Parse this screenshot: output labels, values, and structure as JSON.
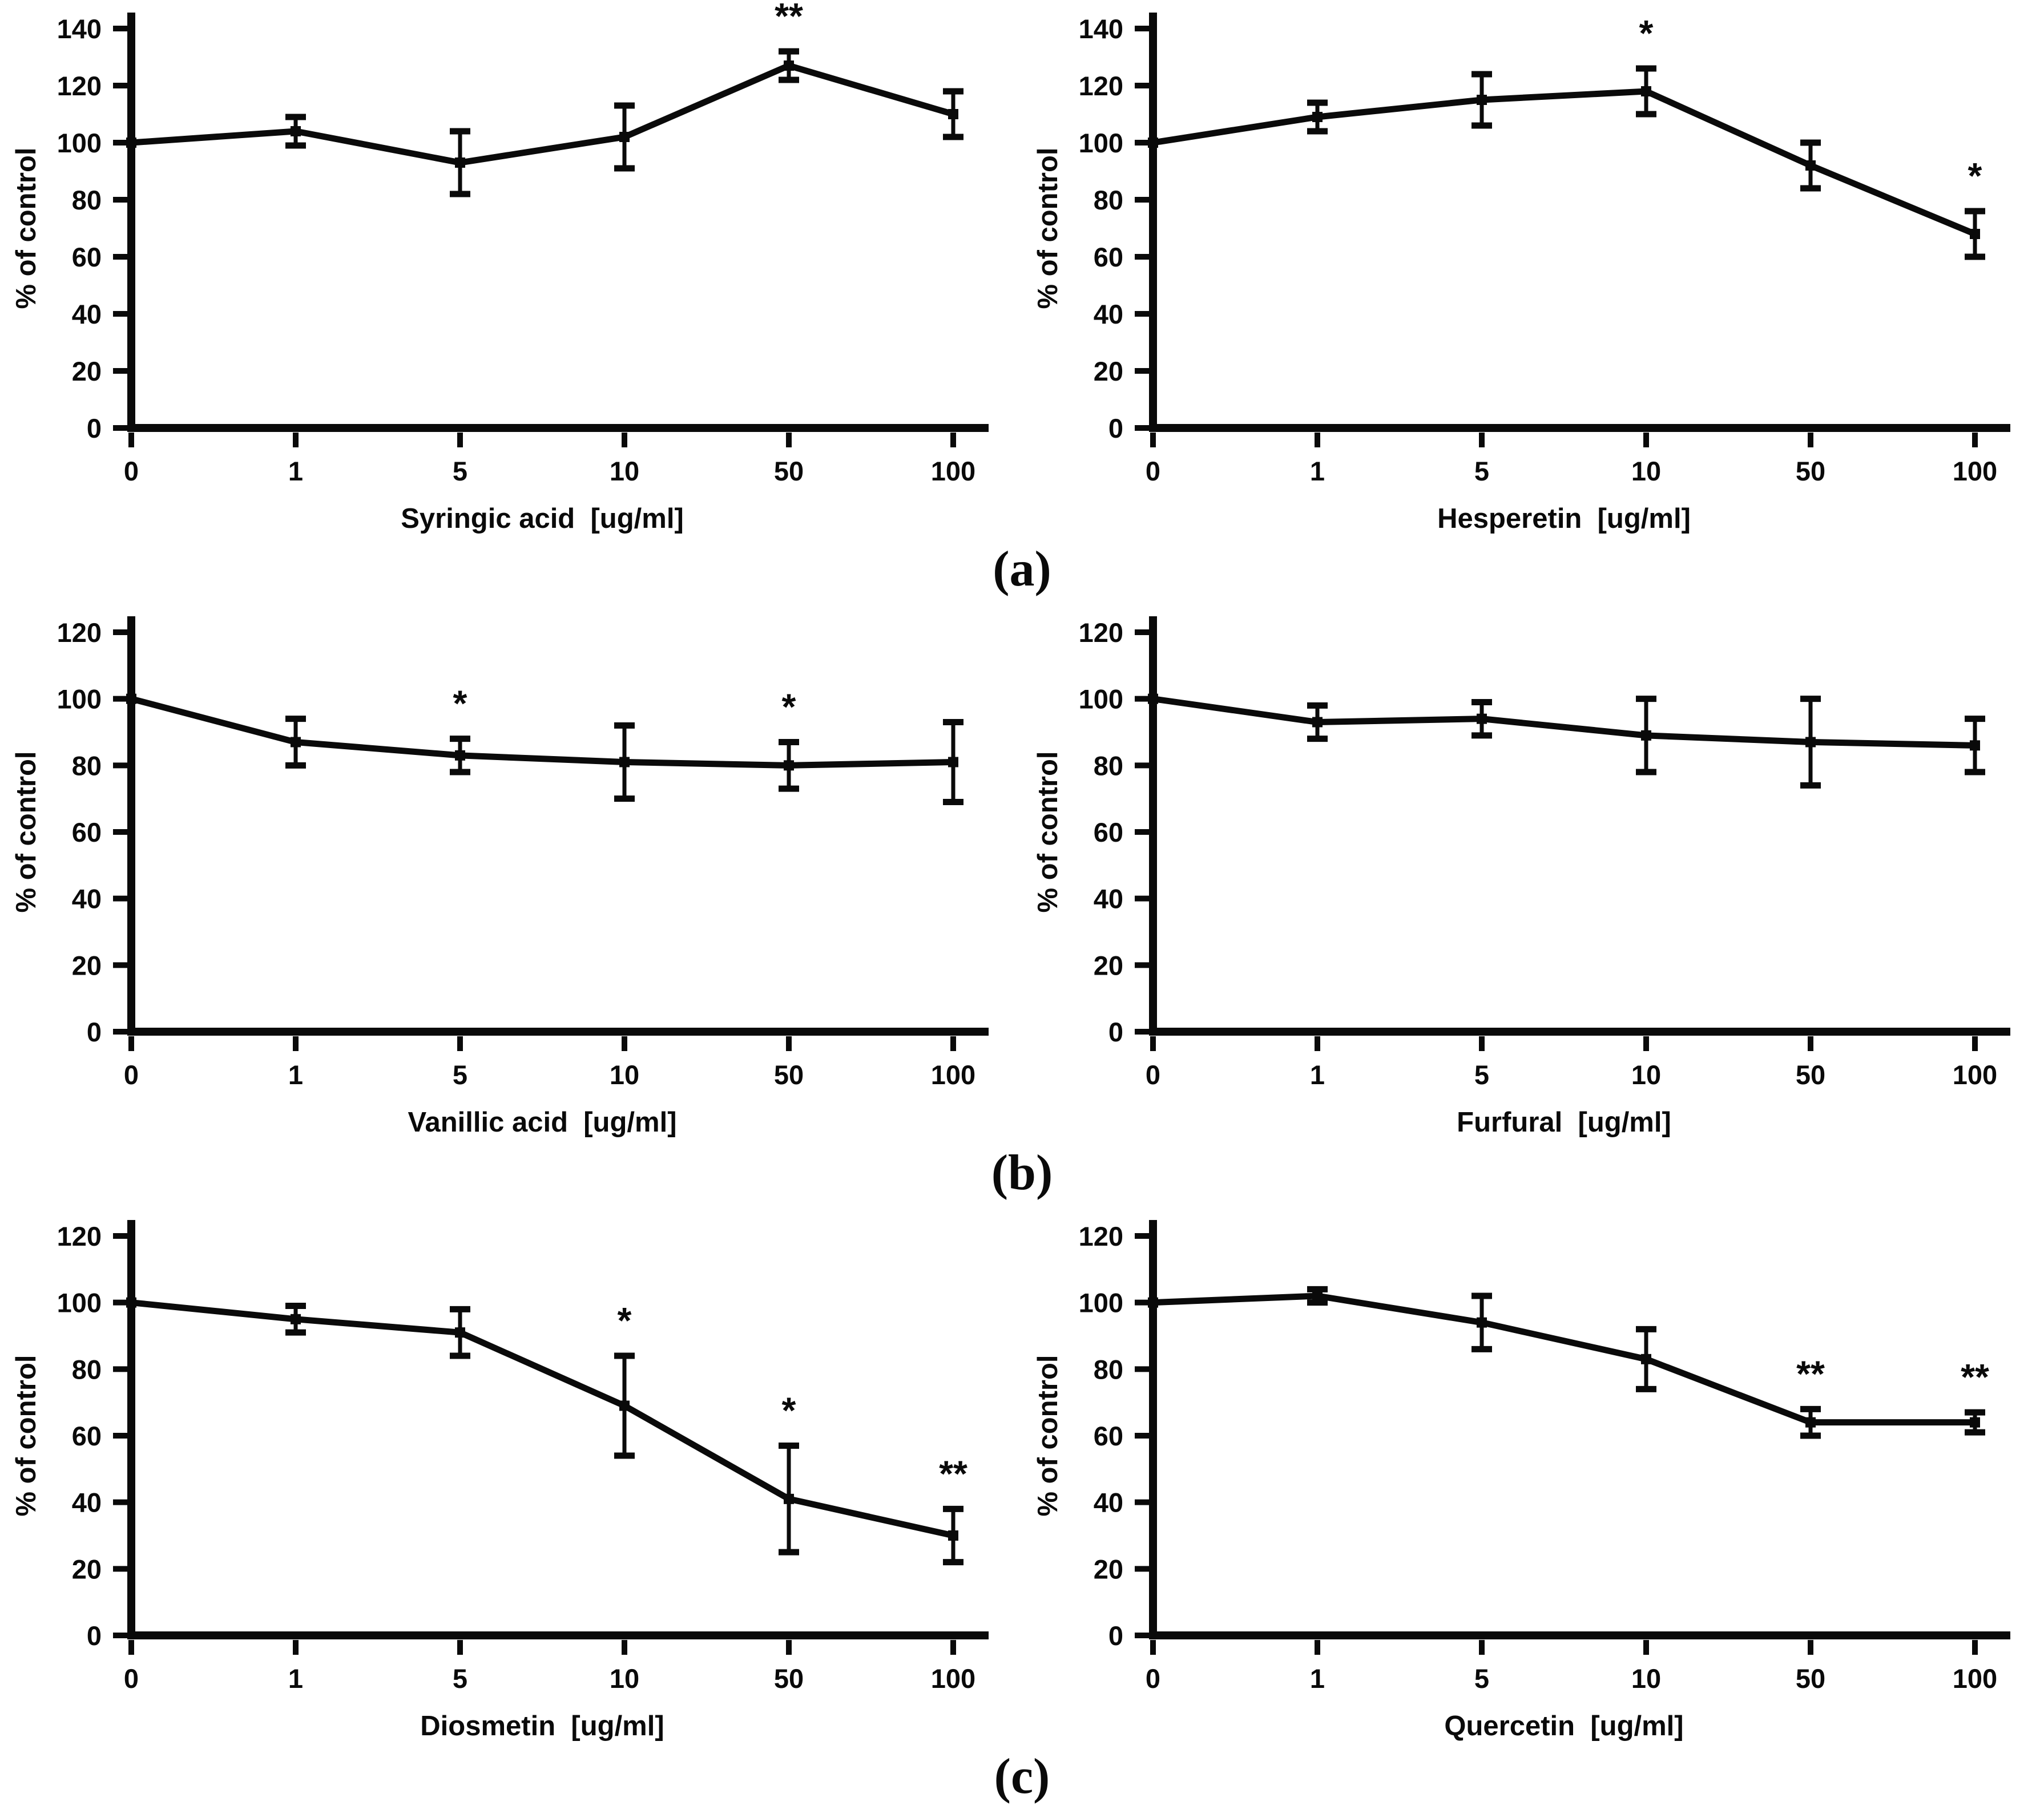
{
  "page": {
    "background": "#ffffff",
    "ink": "#0a0a0a"
  },
  "panel_labels": [
    {
      "id": "a",
      "label": "(a)"
    },
    {
      "id": "b",
      "label": "(b)"
    },
    {
      "id": "c",
      "label": "(c)"
    }
  ],
  "chart_data": [
    {
      "id": "syringic-acid",
      "panel": "a",
      "side": "left",
      "type": "line",
      "title": "",
      "xlabel": "Syringic acid  [ug/ml]",
      "ylabel": "% of control",
      "categories": [
        "0",
        "1",
        "5",
        "10",
        "50",
        "100"
      ],
      "values": [
        100,
        104,
        93,
        102,
        127,
        110
      ],
      "errors": [
        0,
        5,
        11,
        11,
        5,
        8
      ],
      "significance": [
        "",
        "",
        "",
        "",
        "**",
        ""
      ],
      "ylim": [
        0,
        140
      ],
      "yticks": [
        0,
        20,
        40,
        60,
        80,
        100,
        120,
        140
      ],
      "grid": false,
      "legend": "none",
      "line_color": "#0a0a0a"
    },
    {
      "id": "hesperetin",
      "panel": "a",
      "side": "right",
      "type": "line",
      "title": "",
      "xlabel": "Hesperetin  [ug/ml]",
      "ylabel": "% of control",
      "categories": [
        "0",
        "1",
        "5",
        "10",
        "50",
        "100"
      ],
      "values": [
        100,
        109,
        115,
        118,
        92,
        68
      ],
      "errors": [
        0,
        5,
        9,
        8,
        8,
        8
      ],
      "significance": [
        "",
        "",
        "",
        "*",
        "",
        "*"
      ],
      "ylim": [
        0,
        140
      ],
      "yticks": [
        0,
        20,
        40,
        60,
        80,
        100,
        120,
        140
      ],
      "grid": false,
      "legend": "none",
      "line_color": "#0a0a0a"
    },
    {
      "id": "vanillic-acid",
      "panel": "b",
      "side": "left",
      "type": "line",
      "title": "",
      "xlabel": "Vanillic acid  [ug/ml]",
      "ylabel": "% of control",
      "categories": [
        "0",
        "1",
        "5",
        "10",
        "50",
        "100"
      ],
      "values": [
        100,
        87,
        83,
        81,
        80,
        81
      ],
      "errors": [
        0,
        7,
        5,
        11,
        7,
        12
      ],
      "significance": [
        "",
        "",
        "*",
        "",
        "*",
        ""
      ],
      "ylim": [
        0,
        120
      ],
      "yticks": [
        0,
        20,
        40,
        60,
        80,
        100,
        120
      ],
      "grid": false,
      "legend": "none",
      "line_color": "#0a0a0a"
    },
    {
      "id": "furfural",
      "panel": "b",
      "side": "right",
      "type": "line",
      "title": "",
      "xlabel": "Furfural  [ug/ml]",
      "ylabel": "% of control",
      "categories": [
        "0",
        "1",
        "5",
        "10",
        "50",
        "100"
      ],
      "values": [
        100,
        93,
        94,
        89,
        87,
        86
      ],
      "errors": [
        0,
        5,
        5,
        11,
        13,
        8
      ],
      "significance": [
        "",
        "",
        "",
        "",
        "",
        ""
      ],
      "ylim": [
        0,
        120
      ],
      "yticks": [
        0,
        20,
        40,
        60,
        80,
        100,
        120
      ],
      "grid": false,
      "legend": "none",
      "line_color": "#0a0a0a"
    },
    {
      "id": "diosmetin",
      "panel": "c",
      "side": "left",
      "type": "line",
      "title": "",
      "xlabel": "Diosmetin  [ug/ml]",
      "ylabel": "% of control",
      "categories": [
        "0",
        "1",
        "5",
        "10",
        "50",
        "100"
      ],
      "values": [
        100,
        95,
        91,
        69,
        41,
        30
      ],
      "errors": [
        0,
        4,
        7,
        15,
        16,
        8
      ],
      "significance": [
        "",
        "",
        "",
        "*",
        "*",
        "**"
      ],
      "ylim": [
        0,
        120
      ],
      "yticks": [
        0,
        20,
        40,
        60,
        80,
        100,
        120
      ],
      "grid": false,
      "legend": "none",
      "line_color": "#0a0a0a"
    },
    {
      "id": "quercetin",
      "panel": "c",
      "side": "right",
      "type": "line",
      "title": "",
      "xlabel": "Quercetin  [ug/ml]",
      "ylabel": "% of control",
      "categories": [
        "0",
        "1",
        "5",
        "10",
        "50",
        "100"
      ],
      "values": [
        100,
        102,
        94,
        83,
        64,
        64
      ],
      "errors": [
        0,
        2,
        8,
        9,
        4,
        3
      ],
      "significance": [
        "",
        "",
        "",
        "",
        "**",
        "**"
      ],
      "ylim": [
        0,
        120
      ],
      "yticks": [
        0,
        20,
        40,
        60,
        80,
        100,
        120
      ],
      "grid": false,
      "legend": "none",
      "line_color": "#0a0a0a"
    }
  ]
}
